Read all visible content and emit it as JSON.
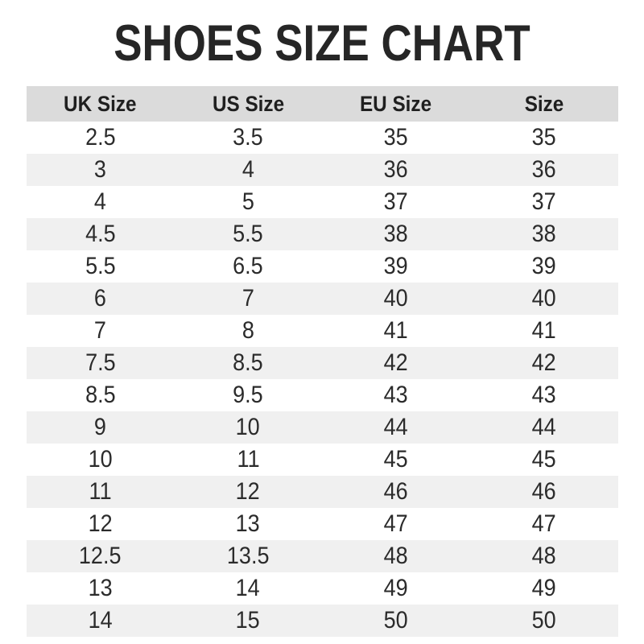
{
  "title": "SHOES SIZE CHART",
  "chart_data": {
    "type": "table",
    "title": "SHOES SIZE CHART",
    "columns": [
      "UK Size",
      "US Size",
      "EU Size",
      "Size"
    ],
    "rows": [
      [
        "2.5",
        "3.5",
        "35",
        "35"
      ],
      [
        "3",
        "4",
        "36",
        "36"
      ],
      [
        "4",
        "5",
        "37",
        "37"
      ],
      [
        "4.5",
        "5.5",
        "38",
        "38"
      ],
      [
        "5.5",
        "6.5",
        "39",
        "39"
      ],
      [
        "6",
        "7",
        "40",
        "40"
      ],
      [
        "7",
        "8",
        "41",
        "41"
      ],
      [
        "7.5",
        "8.5",
        "42",
        "42"
      ],
      [
        "8.5",
        "9.5",
        "43",
        "43"
      ],
      [
        "9",
        "10",
        "44",
        "44"
      ],
      [
        "10",
        "11",
        "45",
        "45"
      ],
      [
        "11",
        "12",
        "46",
        "46"
      ],
      [
        "12",
        "13",
        "47",
        "47"
      ],
      [
        "12.5",
        "13.5",
        "48",
        "48"
      ],
      [
        "13",
        "14",
        "49",
        "49"
      ],
      [
        "14",
        "15",
        "50",
        "50"
      ]
    ],
    "layout": {
      "header_position": "top",
      "row_striping": "alternating",
      "grid": false
    }
  },
  "colors": {
    "background": "#ffffff",
    "header_bg": "#dbdbdb",
    "row_stripe_bg": "#f0f0f0",
    "text": "#2b2b2b",
    "title_color": "#262626"
  }
}
